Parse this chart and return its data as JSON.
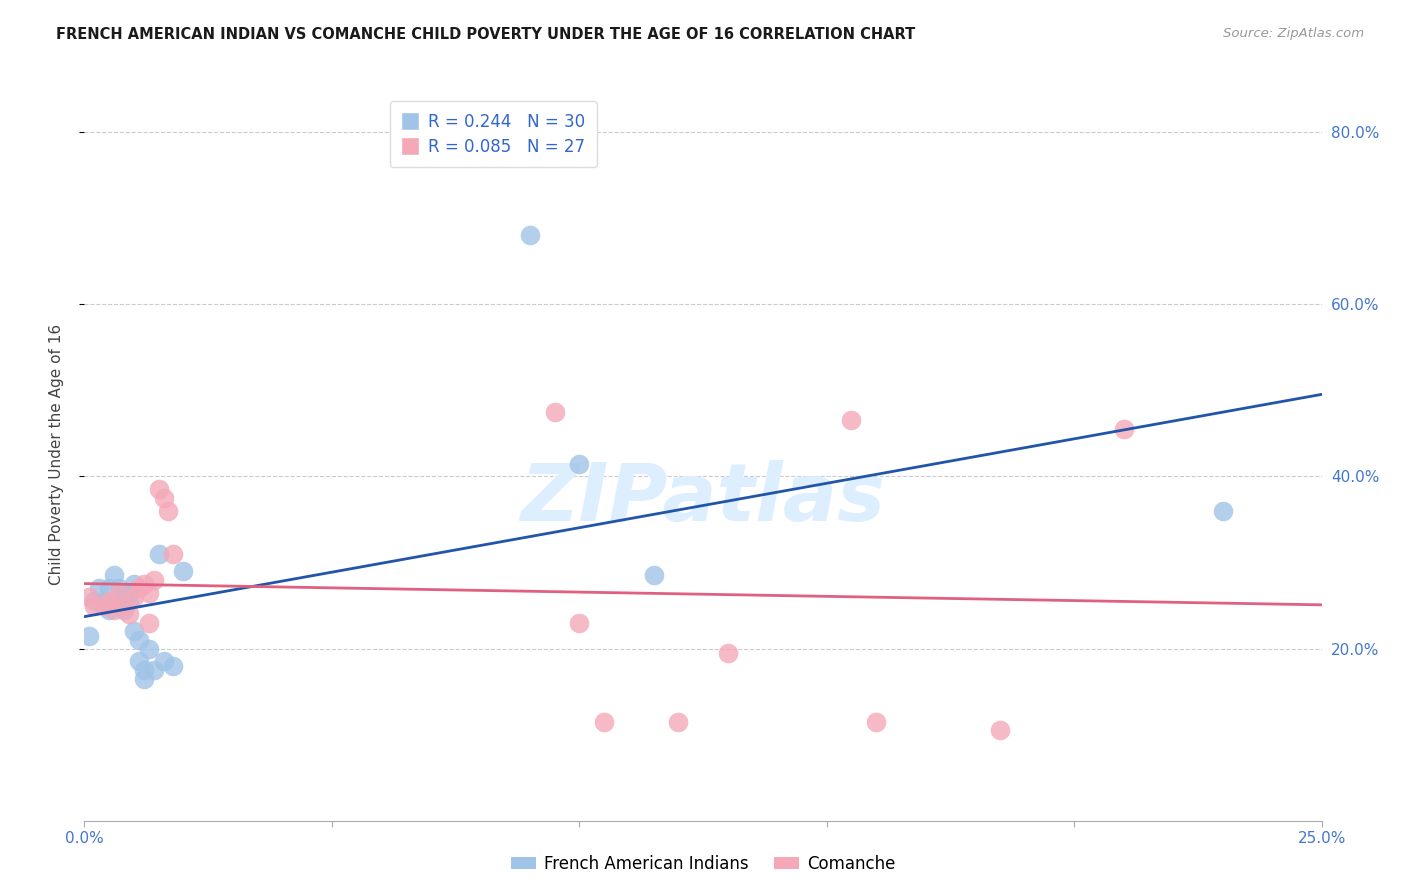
{
  "title": "FRENCH AMERICAN INDIAN VS COMANCHE CHILD POVERTY UNDER THE AGE OF 16 CORRELATION CHART",
  "source": "Source: ZipAtlas.com",
  "ylabel": "Child Poverty Under the Age of 16",
  "xlim": [
    0.0,
    0.25
  ],
  "ylim": [
    0.0,
    0.85
  ],
  "xticks": [
    0.0,
    0.05,
    0.1,
    0.15,
    0.2,
    0.25
  ],
  "yticks": [
    0.2,
    0.4,
    0.6,
    0.8
  ],
  "ytick_labels": [
    "20.0%",
    "40.0%",
    "60.0%",
    "80.0%"
  ],
  "xtick_labels": [
    "0.0%",
    "",
    "",
    "",
    "",
    "25.0%"
  ],
  "blue_color": "#a0c4e8",
  "pink_color": "#f4a8b8",
  "blue_line_color": "#2255aa",
  "pink_line_color": "#e06080",
  "watermark_color": "#ddeeff",
  "blue_scatter_x": [
    0.001,
    0.002,
    0.003,
    0.004,
    0.005,
    0.005,
    0.006,
    0.006,
    0.007,
    0.007,
    0.008,
    0.008,
    0.009,
    0.009,
    0.01,
    0.01,
    0.011,
    0.011,
    0.012,
    0.012,
    0.013,
    0.014,
    0.015,
    0.016,
    0.018,
    0.02,
    0.09,
    0.1,
    0.115,
    0.23
  ],
  "blue_scatter_y": [
    0.215,
    0.255,
    0.27,
    0.255,
    0.27,
    0.245,
    0.285,
    0.255,
    0.27,
    0.255,
    0.265,
    0.245,
    0.265,
    0.255,
    0.275,
    0.22,
    0.21,
    0.185,
    0.175,
    0.165,
    0.2,
    0.175,
    0.31,
    0.185,
    0.18,
    0.29,
    0.68,
    0.415,
    0.285,
    0.36
  ],
  "pink_scatter_x": [
    0.001,
    0.002,
    0.004,
    0.005,
    0.006,
    0.007,
    0.008,
    0.009,
    0.01,
    0.011,
    0.012,
    0.013,
    0.013,
    0.014,
    0.015,
    0.016,
    0.017,
    0.018,
    0.095,
    0.1,
    0.105,
    0.12,
    0.13,
    0.155,
    0.16,
    0.185,
    0.21
  ],
  "pink_scatter_y": [
    0.26,
    0.25,
    0.25,
    0.255,
    0.245,
    0.265,
    0.25,
    0.24,
    0.26,
    0.27,
    0.275,
    0.265,
    0.23,
    0.28,
    0.385,
    0.375,
    0.36,
    0.31,
    0.475,
    0.23,
    0.115,
    0.115,
    0.195,
    0.465,
    0.115,
    0.105,
    0.455
  ],
  "background_color": "#ffffff",
  "grid_color": "#cccccc"
}
